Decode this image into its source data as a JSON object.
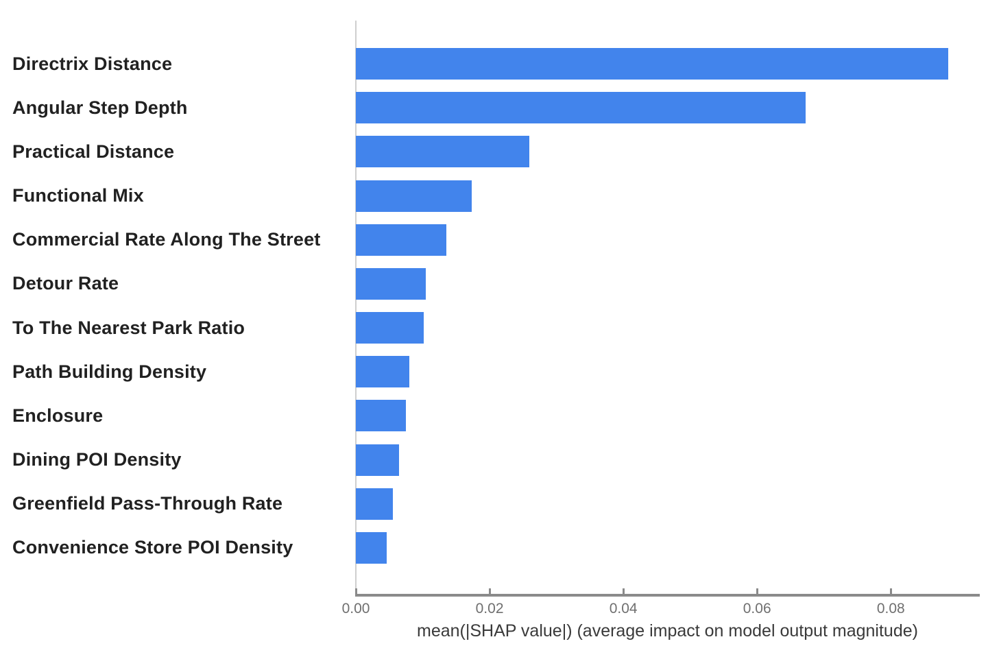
{
  "chart_data": {
    "type": "bar",
    "orientation": "horizontal",
    "title": "",
    "xlabel": "mean(|SHAP value|) (average impact on model output magnitude)",
    "ylabel": "",
    "categories": [
      "Directrix Distance",
      "Angular Step Depth",
      "Practical Distance",
      "Functional Mix",
      "Commercial Rate Along The Street",
      "Detour Rate",
      "To The Nearest Park Ratio",
      "Path Building Density",
      "Enclosure",
      "Dining POI Density",
      "Greenfield Pass-Through Rate",
      "Convenience Store POI Density"
    ],
    "values": [
      0.0886,
      0.0673,
      0.0259,
      0.0173,
      0.0135,
      0.0105,
      0.0101,
      0.008,
      0.0075,
      0.0065,
      0.0055,
      0.0046
    ],
    "x_ticks": [
      "0.00",
      "0.02",
      "0.04",
      "0.06",
      "0.08"
    ],
    "x_tick_values": [
      0.0,
      0.02,
      0.04,
      0.06,
      0.08
    ],
    "xlim": [
      0,
      0.0932
    ],
    "grid": false,
    "legend": null,
    "bar_color": "#4284ec",
    "axis_line_color": "#8a8a8a",
    "spine_color": "#cfcfcf",
    "tick_label_color": "#6f6f6f",
    "axis_label_color": "#3a3a3a",
    "category_label_color": "#212121",
    "background": "#ffffff"
  }
}
